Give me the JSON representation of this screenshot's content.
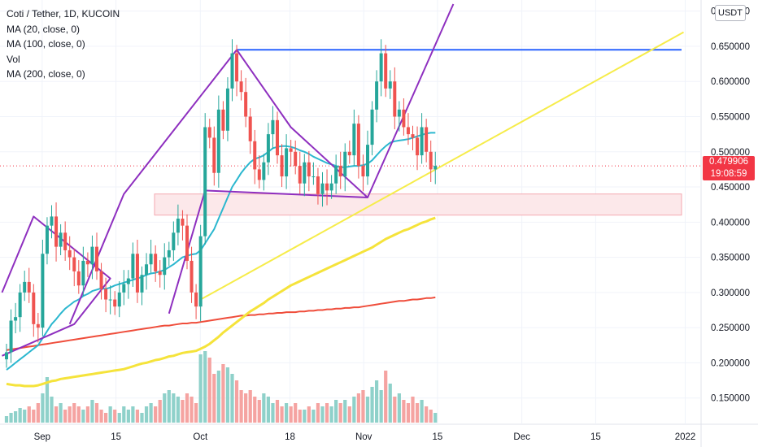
{
  "legend": {
    "title": "Coti / Tether, 1D, KUCOIN",
    "lines": [
      "MA (20, close, 0)",
      "MA (100, close, 0)",
      "Vol",
      "MA (200, close, 0)"
    ]
  },
  "unit_label": "USDT",
  "last_price": {
    "value": "0.479906",
    "countdown": "19:08:59",
    "color": "#f23645"
  },
  "colors": {
    "up": "#26a69a",
    "down": "#ef5350",
    "vol_up": "#8fd1ca",
    "vol_down": "#f5a3a1",
    "ma20": "#2bb7cf",
    "ma100": "#f5e33b",
    "ma200": "#ef4d3b",
    "purple": "#8e2fbf",
    "blue": "#2962ff",
    "yellow_line": "#f6ec4a",
    "zone_fill": "#fce8ea",
    "zone_border": "#f4a9b1"
  },
  "chart_data": {
    "type": "candlestick",
    "y_axis": {
      "ticks": [
        "0.150000",
        "0.200000",
        "0.250000",
        "0.300000",
        "0.350000",
        "0.400000",
        "0.450000",
        "0.500000",
        "0.550000",
        "0.600000",
        "0.650000",
        "0.700000"
      ],
      "range": [
        0.115,
        0.71
      ]
    },
    "x_axis": {
      "ticks": [
        {
          "label": "Sep",
          "day": 30
        },
        {
          "label": "15",
          "day": 44
        },
        {
          "label": "Oct",
          "day": 60
        },
        {
          "label": "18",
          "day": 77
        },
        {
          "label": "Nov",
          "day": 91
        },
        {
          "label": "15",
          "day": 105
        },
        {
          "label": "Dec",
          "day": 121
        },
        {
          "label": "15",
          "day": 135
        },
        {
          "label": "2022",
          "day": 152
        }
      ],
      "day_range": [
        22,
        155
      ]
    },
    "closes": [
      0.215,
      0.26,
      0.265,
      0.3,
      0.315,
      0.3,
      0.255,
      0.25,
      0.355,
      0.395,
      0.408,
      0.365,
      0.385,
      0.36,
      0.35,
      0.33,
      0.31,
      0.345,
      0.34,
      0.365,
      0.33,
      0.305,
      0.29,
      0.29,
      0.28,
      0.3,
      0.312,
      0.32,
      0.355,
      0.3,
      0.325,
      0.34,
      0.355,
      0.33,
      0.325,
      0.35,
      0.36,
      0.385,
      0.405,
      0.395,
      0.345,
      0.3,
      0.28,
      0.38,
      0.535,
      0.52,
      0.47,
      0.56,
      0.53,
      0.59,
      0.64,
      0.6,
      0.585,
      0.55,
      0.515,
      0.475,
      0.46,
      0.485,
      0.525,
      0.545,
      0.495,
      0.465,
      0.505,
      0.5,
      0.48,
      0.455,
      0.485,
      0.465,
      0.465,
      0.44,
      0.455,
      0.445,
      0.455,
      0.48,
      0.465,
      0.5,
      0.495,
      0.54,
      0.48,
      0.465,
      0.51,
      0.56,
      0.6,
      0.64,
      0.59,
      0.6,
      0.55,
      0.56,
      0.535,
      0.525,
      0.52,
      0.495,
      0.535,
      0.5,
      0.475,
      0.48
    ],
    "volumes": [
      0.2,
      0.3,
      0.35,
      0.45,
      0.4,
      0.5,
      0.4,
      0.6,
      0.9,
      1.4,
      0.8,
      0.5,
      0.6,
      0.4,
      0.5,
      0.6,
      0.5,
      0.4,
      0.5,
      0.7,
      0.6,
      0.4,
      0.3,
      0.5,
      0.4,
      0.3,
      0.5,
      0.4,
      0.5,
      0.4,
      0.3,
      0.5,
      0.6,
      0.5,
      0.7,
      0.9,
      1.0,
      0.9,
      0.8,
      0.7,
      0.9,
      0.8,
      0.6,
      2.1,
      2.2,
      2.0,
      1.5,
      1.6,
      1.8,
      1.7,
      1.5,
      1.3,
      1.0,
      0.9,
      1.0,
      0.8,
      0.7,
      0.9,
      0.8,
      0.6,
      0.7,
      0.5,
      0.6,
      0.5,
      0.6,
      0.4,
      0.4,
      0.5,
      0.4,
      0.6,
      0.5,
      0.6,
      0.5,
      0.7,
      0.6,
      0.7,
      0.5,
      0.8,
      0.9,
      1.0,
      0.8,
      1.1,
      1.3,
      1.0,
      1.6,
      1.2,
      0.8,
      0.9,
      0.7,
      0.6,
      0.8,
      0.6,
      0.7,
      0.5,
      0.4,
      0.3
    ],
    "ma20": [
      0.19,
      0.195,
      0.2,
      0.205,
      0.21,
      0.215,
      0.22,
      0.225,
      0.235,
      0.245,
      0.255,
      0.262,
      0.27,
      0.277,
      0.282,
      0.287,
      0.29,
      0.295,
      0.298,
      0.302,
      0.304,
      0.306,
      0.305,
      0.307,
      0.31,
      0.312,
      0.314,
      0.316,
      0.318,
      0.32,
      0.322,
      0.325,
      0.327,
      0.328,
      0.33,
      0.332,
      0.336,
      0.34,
      0.345,
      0.35,
      0.352,
      0.354,
      0.355,
      0.36,
      0.37,
      0.38,
      0.39,
      0.405,
      0.42,
      0.435,
      0.45,
      0.46,
      0.47,
      0.478,
      0.485,
      0.49,
      0.492,
      0.495,
      0.5,
      0.505,
      0.507,
      0.508,
      0.508,
      0.507,
      0.505,
      0.502,
      0.5,
      0.497,
      0.493,
      0.49,
      0.487,
      0.484,
      0.482,
      0.48,
      0.478,
      0.478,
      0.479,
      0.48,
      0.48,
      0.481,
      0.483,
      0.488,
      0.495,
      0.502,
      0.508,
      0.513,
      0.515,
      0.516,
      0.517,
      0.518,
      0.52,
      0.522,
      0.524,
      0.526,
      0.527,
      0.527
    ],
    "ma100": [
      0.17,
      0.169,
      0.168,
      0.168,
      0.167,
      0.167,
      0.167,
      0.168,
      0.17,
      0.172,
      0.174,
      0.175,
      0.177,
      0.178,
      0.179,
      0.18,
      0.181,
      0.182,
      0.183,
      0.184,
      0.185,
      0.186,
      0.187,
      0.188,
      0.189,
      0.19,
      0.191,
      0.193,
      0.195,
      0.197,
      0.199,
      0.2,
      0.202,
      0.204,
      0.205,
      0.207,
      0.209,
      0.21,
      0.212,
      0.214,
      0.215,
      0.216,
      0.217,
      0.22,
      0.223,
      0.227,
      0.232,
      0.237,
      0.243,
      0.248,
      0.253,
      0.258,
      0.263,
      0.268,
      0.273,
      0.277,
      0.281,
      0.285,
      0.29,
      0.294,
      0.298,
      0.302,
      0.306,
      0.31,
      0.313,
      0.316,
      0.319,
      0.322,
      0.325,
      0.328,
      0.331,
      0.334,
      0.337,
      0.34,
      0.343,
      0.346,
      0.349,
      0.352,
      0.355,
      0.358,
      0.361,
      0.364,
      0.368,
      0.372,
      0.376,
      0.379,
      0.382,
      0.385,
      0.388,
      0.39,
      0.393,
      0.396,
      0.399,
      0.401,
      0.404,
      0.406
    ],
    "ma200": [
      0.218,
      0.219,
      0.22,
      0.221,
      0.222,
      0.223,
      0.224,
      0.225,
      0.226,
      0.227,
      0.228,
      0.229,
      0.23,
      0.231,
      0.232,
      0.233,
      0.234,
      0.235,
      0.236,
      0.237,
      0.238,
      0.239,
      0.24,
      0.241,
      0.242,
      0.243,
      0.244,
      0.245,
      0.246,
      0.247,
      0.248,
      0.249,
      0.25,
      0.251,
      0.252,
      0.253,
      0.253,
      0.254,
      0.255,
      0.256,
      0.256,
      0.257,
      0.257,
      0.258,
      0.259,
      0.26,
      0.261,
      0.262,
      0.263,
      0.264,
      0.265,
      0.266,
      0.267,
      0.267,
      0.268,
      0.268,
      0.269,
      0.269,
      0.27,
      0.27,
      0.271,
      0.271,
      0.272,
      0.272,
      0.272,
      0.273,
      0.273,
      0.274,
      0.274,
      0.275,
      0.275,
      0.276,
      0.276,
      0.277,
      0.277,
      0.278,
      0.278,
      0.279,
      0.279,
      0.28,
      0.281,
      0.282,
      0.283,
      0.284,
      0.285,
      0.286,
      0.287,
      0.288,
      0.288,
      0.289,
      0.29,
      0.29,
      0.291,
      0.292,
      0.292,
      0.293
    ],
    "drawings": {
      "resistance_line": {
        "y": 0.645,
        "x_start_idx": 51,
        "x_end_day": 155
      },
      "support_zone": {
        "y_top": 0.44,
        "y_bottom": 0.41
      },
      "triangle1": [
        [
          -1,
          0.3
        ],
        [
          6,
          0.408
        ],
        [
          23,
          0.32
        ],
        [
          15,
          0.255
        ],
        [
          -1,
          0.21
        ]
      ],
      "triangle2": [
        [
          51,
          0.645
        ],
        [
          63,
          0.535
        ],
        [
          80,
          0.435
        ],
        [
          44,
          0.445
        ],
        [
          36,
          0.27
        ]
      ],
      "rising_purple": [
        [
          14,
          0.255
        ],
        [
          26,
          0.44
        ],
        [
          51,
          0.645
        ]
      ],
      "rising_purple2": [
        [
          80,
          0.435
        ],
        [
          99,
          0.71
        ]
      ],
      "yellow_trend": [
        [
          43,
          0.29
        ],
        [
          150,
          0.67
        ]
      ]
    }
  }
}
